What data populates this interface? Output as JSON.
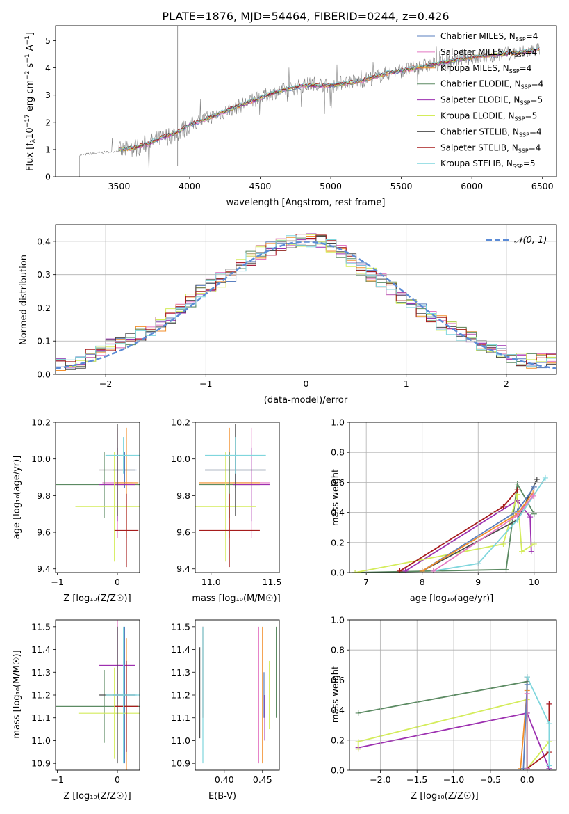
{
  "title": "PLATE=1876, MJD=54464, FIBERID=0244, z=0.426",
  "colors": {
    "Chabrier MILES": "#5a7fbf",
    "Salpeter MILES": "#e377c2",
    "Kroupa MILES": "#f28e2b",
    "Chabrier ELODIE": "#5b8a62",
    "Salpeter ELODIE": "#9c2fb0",
    "Kroupa ELODIE": "#d4ec5a",
    "Chabrier STELIB": "#4a4a4a",
    "Salpeter STELIB": "#a61c1c",
    "Kroupa STELIB": "#7fd6dd",
    "data": "#808080",
    "normal": "#5b8bd6",
    "grid": "#b0b0b0"
  },
  "panel_spectrum": {
    "xlabel": "wavelength [Angstrom, rest frame]",
    "ylabel": "Flux [f$_\\lambda$10$^{-17}$ erg cm$^{-2}$ s$^{-1}$ A$^{-1}$]",
    "ylabel_parts": [
      "Flux [f",
      "λ",
      "10",
      "−17",
      " erg cm",
      "−2",
      " s",
      "−1",
      " A",
      "−1",
      "]"
    ],
    "xticks": [
      "3500",
      "4000",
      "4500",
      "5000",
      "5500",
      "6000",
      "6500"
    ],
    "yticks": [
      "0",
      "1",
      "2",
      "3",
      "4",
      "5"
    ],
    "legend": [
      {
        "model": "Chabrier MILES",
        "nssp": "4"
      },
      {
        "model": "Salpeter MILES",
        "nssp": "4"
      },
      {
        "model": "Kroupa MILES",
        "nssp": "4"
      },
      {
        "model": "Chabrier ELODIE",
        "nssp": "4"
      },
      {
        "model": "Salpeter ELODIE",
        "nssp": "5"
      },
      {
        "model": "Kroupa ELODIE",
        "nssp": "5"
      },
      {
        "model": "Chabrier STELIB",
        "nssp": "4"
      },
      {
        "model": "Salpeter STELIB",
        "nssp": "4"
      },
      {
        "model": "Kroupa STELIB",
        "nssp": "5"
      }
    ],
    "nssp_label": "N",
    "nssp_sub": "SSP"
  },
  "panel_residuals": {
    "xlabel": "(data-model)/error",
    "ylabel": "Normed distribution",
    "xticks": [
      "−2",
      "−1",
      "0",
      "1",
      "2"
    ],
    "yticks": [
      "0.0",
      "0.1",
      "0.2",
      "0.3",
      "0.4"
    ],
    "legend_label": "𝒩(0, 1)"
  },
  "panel_z_age": {
    "xlabel": "Z [log₁₀(Z/Z☉)]",
    "ylabel": "age  [log₁₀(age/yr)]",
    "xticks": [
      "−1",
      "0"
    ],
    "yticks": [
      "9.4",
      "9.6",
      "9.8",
      "10.0",
      "10.2"
    ]
  },
  "panel_mass_age": {
    "xlabel": "mass [log₁₀(M/M☉)]",
    "yticks": [
      "9.4",
      "9.6",
      "9.8",
      "10.0",
      "10.2"
    ],
    "xticks": [
      "11.0",
      "11.5"
    ]
  },
  "panel_age_weight": {
    "xlabel": "age  [log₁₀(age/yr)]",
    "ylabel": "mass weight",
    "xticks": [
      "7",
      "8",
      "9",
      "10"
    ],
    "yticks": [
      "0.0",
      "0.2",
      "0.4",
      "0.6",
      "0.8",
      "1.0"
    ]
  },
  "panel_z_mass": {
    "xlabel": "Z [log₁₀(Z/Z☉)]",
    "ylabel": "mass [log₁₀(M/M☉)]",
    "xticks": [
      "−1",
      "0"
    ],
    "yticks": [
      "10.9",
      "11.0",
      "11.1",
      "11.2",
      "11.3",
      "11.4",
      "11.5"
    ]
  },
  "panel_ebv_mass": {
    "xlabel": "E(B-V)",
    "xticks": [
      "0.40",
      "0.45"
    ],
    "yticks": [
      "10.9",
      "11.0",
      "11.1",
      "11.2",
      "11.3",
      "11.4",
      "11.5"
    ]
  },
  "panel_z_weight": {
    "xlabel": "Z [log₁₀(Z/Z☉)]",
    "ylabel": "mass weight",
    "xticks": [
      "−2.0",
      "−1.5",
      "−1.0",
      "−0.5",
      "0.0"
    ],
    "yticks": [
      "0.0",
      "0.2",
      "0.4",
      "0.6",
      "0.8",
      "1.0"
    ]
  },
  "chart_data": [
    {
      "type": "line",
      "title": "PLATE=1876, MJD=54464, FIBERID=0244, z=0.426",
      "xlabel": "wavelength [Angstrom, rest frame]",
      "ylabel": "Flux [f_λ 10^-17 erg cm^-2 s^-1 A^-1]",
      "xlim": [
        3050,
        6600
      ],
      "ylim": [
        0,
        5.55
      ],
      "grid": false,
      "legend_position": "top-right",
      "series": [
        {
          "name": "data",
          "x": [
            3220,
            3300,
            3400,
            3500,
            3600,
            3700,
            3800,
            3900,
            3950,
            4000,
            4100,
            4200,
            4300,
            4400,
            4500,
            4600,
            4700,
            4800,
            4900,
            5000,
            5100,
            5200,
            5300,
            5400,
            5500,
            5600,
            5700,
            5800,
            5900,
            6000,
            6100,
            6200,
            6300,
            6400,
            6480
          ],
          "y": [
            0.8,
            0.85,
            0.9,
            0.95,
            1.05,
            1.2,
            1.4,
            1.6,
            1.7,
            1.9,
            2.1,
            2.3,
            2.5,
            2.7,
            2.9,
            3.1,
            3.2,
            3.35,
            3.45,
            3.3,
            3.5,
            3.5,
            3.65,
            3.8,
            3.9,
            4.0,
            4.1,
            4.2,
            4.3,
            4.4,
            4.4,
            4.5,
            4.55,
            4.6,
            4.7
          ]
        },
        {
          "name": "models",
          "x": [
            3500,
            3600,
            3700,
            3800,
            3900,
            4000,
            4200,
            4400,
            4600,
            4800,
            5000,
            5200,
            5400,
            5600,
            5800,
            6000,
            6200,
            6400,
            6480
          ],
          "y": [
            1.0,
            1.05,
            1.2,
            1.45,
            1.6,
            1.9,
            2.3,
            2.7,
            3.1,
            3.35,
            3.35,
            3.5,
            3.8,
            4.0,
            4.2,
            4.4,
            4.5,
            4.6,
            4.7
          ]
        }
      ]
    },
    {
      "type": "area",
      "xlabel": "(data-model)/error",
      "ylabel": "Normed distribution",
      "xlim": [
        -2.5,
        2.5
      ],
      "ylim": [
        0,
        0.45
      ],
      "grid": true,
      "legend_position": "top-right",
      "series": [
        {
          "name": "𝒩(0, 1)",
          "x": [
            -2.5,
            -2,
            -1.5,
            -1,
            -0.5,
            0,
            0.5,
            1,
            1.5,
            2,
            2.5
          ],
          "y": [
            0.018,
            0.054,
            0.13,
            0.242,
            0.352,
            0.399,
            0.352,
            0.242,
            0.13,
            0.054,
            0.018
          ]
        },
        {
          "name": "histogram",
          "x": [
            -2.5,
            -2.25,
            -2,
            -1.75,
            -1.5,
            -1.25,
            -1,
            -0.75,
            -0.5,
            -0.25,
            0,
            0.25,
            0.5,
            0.75,
            1,
            1.25,
            1.5,
            1.75,
            2,
            2.25,
            2.5
          ],
          "y": [
            0.03,
            0.04,
            0.08,
            0.11,
            0.14,
            0.2,
            0.26,
            0.3,
            0.36,
            0.39,
            0.41,
            0.39,
            0.33,
            0.28,
            0.22,
            0.17,
            0.13,
            0.09,
            0.06,
            0.04,
            0.04
          ]
        }
      ]
    },
    {
      "type": "scatter",
      "xlabel": "Z [log10(Z/Z☉)]",
      "ylabel": "age  [log10(age/yr)]",
      "xlim": [
        -1.03,
        0.37
      ],
      "ylim": [
        9.38,
        10.2
      ],
      "grid": true,
      "points": [
        {
          "name": "Chabrier MILES",
          "x": 0.12,
          "xerr": 0.2,
          "y": 9.94,
          "yerr": 0.1
        },
        {
          "name": "Salpeter MILES",
          "x": 0.0,
          "xerr": 0.25,
          "y": 9.87,
          "yerr": 0.3
        },
        {
          "name": "Kroupa MILES",
          "x": 0.15,
          "xerr": 0.2,
          "y": 9.87,
          "yerr": 0.3
        },
        {
          "name": "Chabrier ELODIE",
          "x": -0.22,
          "xerr": 1.0,
          "y": 9.86,
          "yerr": 0.18
        },
        {
          "name": "Salpeter ELODIE",
          "x": 0.0,
          "xerr": 0.3,
          "y": 9.86,
          "yerr": 0.2
        },
        {
          "name": "Kroupa ELODIE",
          "x": -0.05,
          "xerr": 0.65,
          "y": 9.74,
          "yerr": 0.3
        },
        {
          "name": "Chabrier STELIB",
          "x": 0.0,
          "xerr": 0.3,
          "y": 9.94,
          "yerr": 0.25
        },
        {
          "name": "Salpeter STELIB",
          "x": 0.15,
          "xerr": 0.2,
          "y": 9.61,
          "yerr": 0.2
        },
        {
          "name": "Kroupa STELIB",
          "x": 0.1,
          "xerr": 0.3,
          "y": 10.02,
          "yerr": 0.1
        }
      ]
    },
    {
      "type": "scatter",
      "xlabel": "mass [log10(M/M☉)]",
      "ylabel": "age  [log10(age/yr)]",
      "xlim": [
        10.87,
        11.56
      ],
      "ylim": [
        9.38,
        10.2
      ],
      "grid": true,
      "points": [
        {
          "name": "Chabrier MILES",
          "x": 11.2,
          "xerr": 0.25,
          "y": 9.94,
          "yerr": 0.1
        },
        {
          "name": "Salpeter MILES",
          "x": 11.33,
          "xerr": 0.15,
          "y": 9.87,
          "yerr": 0.3
        },
        {
          "name": "Kroupa MILES",
          "x": 11.15,
          "xerr": 0.25,
          "y": 9.87,
          "yerr": 0.3
        },
        {
          "name": "Chabrier ELODIE",
          "x": 11.15,
          "xerr": 0.25,
          "y": 9.86,
          "yerr": 0.18
        },
        {
          "name": "Salpeter ELODIE",
          "x": 11.33,
          "xerr": 0.15,
          "y": 9.86,
          "yerr": 0.2
        },
        {
          "name": "Kroupa ELODIE",
          "x": 11.12,
          "xerr": 0.25,
          "y": 9.74,
          "yerr": 0.3
        },
        {
          "name": "Chabrier STELIB",
          "x": 11.2,
          "xerr": 0.25,
          "y": 9.94,
          "yerr": 0.25
        },
        {
          "name": "Salpeter STELIB",
          "x": 11.15,
          "xerr": 0.25,
          "y": 9.61,
          "yerr": 0.2
        },
        {
          "name": "Kroupa STELIB",
          "x": 11.2,
          "xerr": 0.25,
          "y": 10.02,
          "yerr": 0.1
        }
      ]
    },
    {
      "type": "line",
      "xlabel": "age  [log10(age/yr)]",
      "ylabel": "mass weight",
      "xlim": [
        6.7,
        10.4
      ],
      "ylim": [
        0,
        1
      ],
      "grid": true,
      "series": [
        {
          "name": "Chabrier ELODIE",
          "x": [
            6.8,
            9.5,
            9.7,
            10.0
          ],
          "y": [
            0.0,
            0.02,
            0.59,
            0.39
          ]
        },
        {
          "name": "Salpeter ELODIE",
          "x": [
            7.7,
            9.7,
            9.93,
            9.95
          ],
          "y": [
            0.01,
            0.48,
            0.37,
            0.14
          ]
        },
        {
          "name": "Kroupa ELODIE",
          "x": [
            6.8,
            9.45,
            9.7,
            9.78,
            10.0
          ],
          "y": [
            0.0,
            0.19,
            0.52,
            0.14,
            0.19
          ]
        },
        {
          "name": "Salpeter STELIB",
          "x": [
            7.6,
            9.45,
            9.7
          ],
          "y": [
            0.01,
            0.44,
            0.55
          ]
        },
        {
          "name": "Chabrier STELIB",
          "x": [
            8.0,
            9.7,
            10.05
          ],
          "y": [
            0.01,
            0.35,
            0.62
          ]
        },
        {
          "name": "Kroupa STELIB",
          "x": [
            8.2,
            9.0,
            9.7,
            10.2
          ],
          "y": [
            0.01,
            0.06,
            0.35,
            0.63
          ]
        },
        {
          "name": "Chabrier MILES",
          "x": [
            8.0,
            9.7,
            10.0
          ],
          "y": [
            0.01,
            0.41,
            0.57
          ]
        },
        {
          "name": "Kroupa MILES",
          "x": [
            8.0,
            9.7,
            9.98
          ],
          "y": [
            0.01,
            0.39,
            0.53
          ]
        },
        {
          "name": "Salpeter MILES",
          "x": [
            8.2,
            9.7,
            9.98
          ],
          "y": [
            0.01,
            0.38,
            0.51
          ]
        }
      ]
    },
    {
      "type": "scatter",
      "xlabel": "Z [log10(Z/Z☉)]",
      "ylabel": "mass [log10(M/M☉)]",
      "xlim": [
        -1.03,
        0.37
      ],
      "ylim": [
        10.87,
        11.53
      ],
      "grid": true,
      "points": [
        {
          "name": "Chabrier MILES",
          "x": 0.12,
          "xerr": 0.2,
          "y": 11.2,
          "yerr": 0.3
        },
        {
          "name": "Salpeter MILES",
          "x": 0.0,
          "xerr": 0.3,
          "y": 11.33,
          "yerr": 0.2
        },
        {
          "name": "Kroupa MILES",
          "x": 0.15,
          "xerr": 0.2,
          "y": 11.15,
          "yerr": 0.3
        },
        {
          "name": "Chabrier ELODIE",
          "x": -0.22,
          "xerr": 1.0,
          "y": 11.15,
          "yerr": 0.16
        },
        {
          "name": "Salpeter ELODIE",
          "x": 0.0,
          "xerr": 0.3,
          "y": 11.33,
          "yerr": 0.17
        },
        {
          "name": "Kroupa ELODIE",
          "x": -0.05,
          "xerr": 0.6,
          "y": 11.12,
          "yerr": 0.2
        },
        {
          "name": "Chabrier STELIB",
          "x": 0.0,
          "xerr": 0.3,
          "y": 11.2,
          "yerr": 0.3
        },
        {
          "name": "Salpeter STELIB",
          "x": 0.15,
          "xerr": 0.2,
          "y": 11.15,
          "yerr": 0.2
        },
        {
          "name": "Kroupa STELIB",
          "x": 0.1,
          "xerr": 0.3,
          "y": 11.2,
          "yerr": 0.3
        }
      ]
    },
    {
      "type": "scatter",
      "xlabel": "E(B-V)",
      "ylabel": "mass [log10(M/M☉)]",
      "xlim": [
        0.362,
        0.472
      ],
      "ylim": [
        10.87,
        11.53
      ],
      "grid": false,
      "points": [
        {
          "name": "Chabrier STELIB",
          "x": 0.368,
          "y": 11.21,
          "yerr": 0.2
        },
        {
          "name": "Salpeter STELIB",
          "x": 0.372,
          "y": 11.3,
          "yerr": 0.2
        },
        {
          "name": "Kroupa STELIB",
          "x": 0.372,
          "y": 11.2,
          "yerr": 0.3
        },
        {
          "name": "Salpeter MILES",
          "x": 0.445,
          "y": 11.2,
          "yerr": 0.3
        },
        {
          "name": "Kroupa MILES",
          "x": 0.45,
          "y": 11.2,
          "yerr": 0.3
        },
        {
          "name": "Chabrier MILES",
          "x": 0.452,
          "y": 11.2,
          "yerr": 0.1
        },
        {
          "name": "Salpeter ELODIE",
          "x": 0.453,
          "y": 11.1,
          "yerr": 0.1
        },
        {
          "name": "Kroupa ELODIE",
          "x": 0.459,
          "y": 11.2,
          "yerr": 0.15
        },
        {
          "name": "Chabrier ELODIE",
          "x": 0.468,
          "y": 11.3,
          "yerr": 0.2
        }
      ]
    },
    {
      "type": "line",
      "xlabel": "Z [log10(Z/Z☉)]",
      "ylabel": "mass weight",
      "xlim": [
        -2.42,
        0.4
      ],
      "ylim": [
        0,
        1
      ],
      "grid": true,
      "series": [
        {
          "name": "Chabrier ELODIE",
          "x": [
            -2.3,
            0.0,
            0.0
          ],
          "y": [
            0.38,
            0.59,
            0.02
          ]
        },
        {
          "name": "Salpeter ELODIE",
          "x": [
            -2.3,
            0.0,
            0.3,
            0.3
          ],
          "y": [
            0.15,
            0.38,
            0.01,
            0.44
          ]
        },
        {
          "name": "Kroupa ELODIE",
          "x": [
            -2.3,
            -2.3,
            0.0,
            0.0,
            0.3
          ],
          "y": [
            0.14,
            0.19,
            0.47,
            0.01,
            0.19
          ]
        },
        {
          "name": "Salpeter STELIB",
          "x": [
            0.0,
            0.3,
            0.3
          ],
          "y": [
            0.01,
            0.12,
            0.44
          ]
        },
        {
          "name": "Chabrier STELIB",
          "x": [
            0.0,
            0.0
          ],
          "y": [
            0.01,
            0.62
          ]
        },
        {
          "name": "Kroupa STELIB",
          "x": [
            0.0,
            0.3,
            0.3
          ],
          "y": [
            0.62,
            0.31,
            0.03
          ]
        },
        {
          "name": "Kroupa MILES",
          "x": [
            -0.09,
            0.0
          ],
          "y": [
            0.01,
            0.53
          ]
        },
        {
          "name": "Chabrier MILES",
          "x": [
            -0.05,
            0.0
          ],
          "y": [
            0.01,
            0.57
          ]
        },
        {
          "name": "Salpeter MILES",
          "x": [
            0.0,
            0.0
          ],
          "y": [
            0.01,
            0.51
          ]
        }
      ]
    }
  ]
}
